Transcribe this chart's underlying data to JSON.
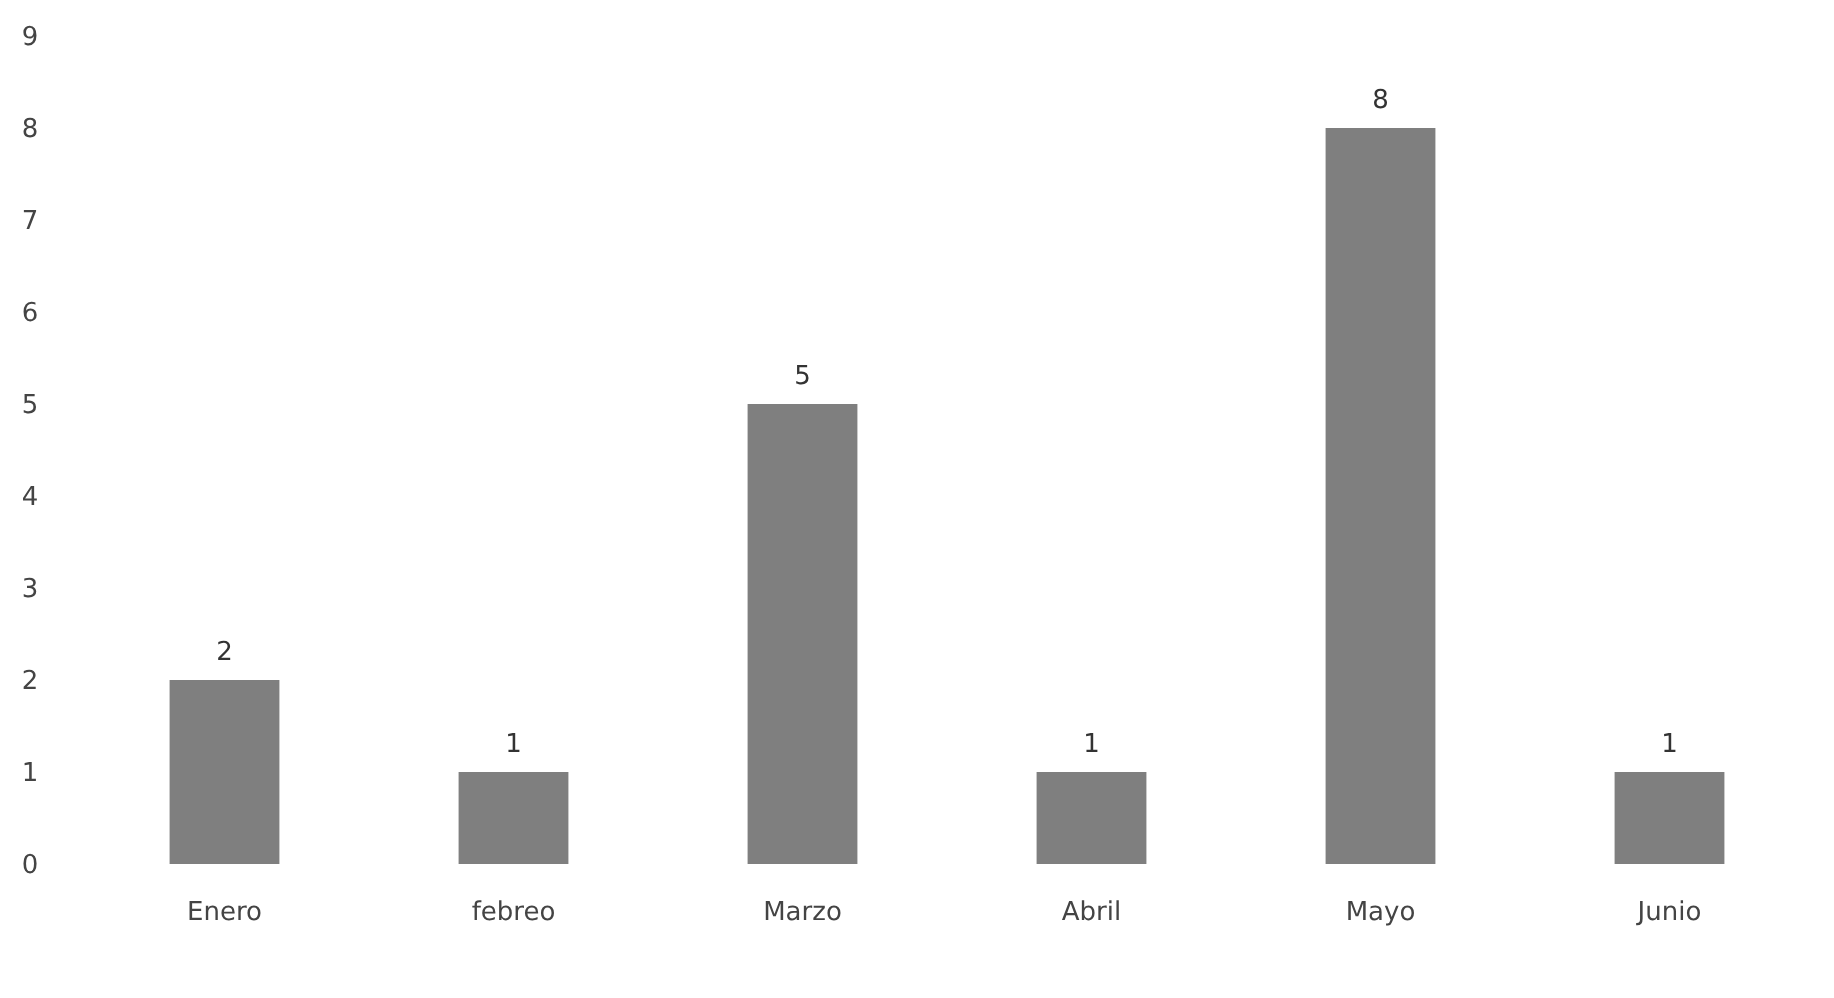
{
  "chart_data": {
    "type": "bar",
    "categories": [
      "Enero",
      "febreo",
      "Marzo",
      "Abril",
      "Mayo",
      "Junio"
    ],
    "values": [
      2,
      1,
      5,
      1,
      8,
      1
    ],
    "color": "#7f7f7f",
    "ylim": [
      0,
      9
    ],
    "yticks": [
      0,
      1,
      2,
      3,
      4,
      5,
      6,
      7,
      8,
      9
    ],
    "data_labels": true
  }
}
